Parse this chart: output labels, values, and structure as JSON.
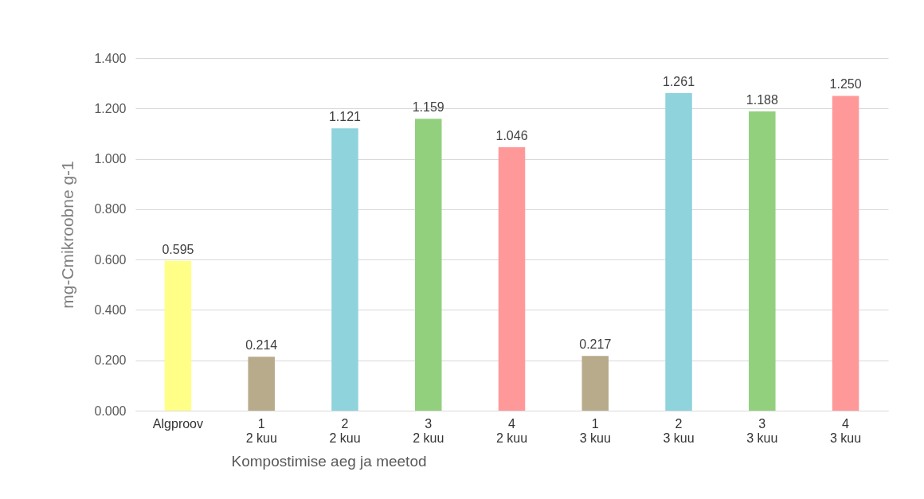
{
  "chart_data": {
    "type": "bar",
    "xlabel": "Kompostimise aeg ja meetod",
    "ylabel": "mg-Cmikroobne g-1",
    "categories": [
      "Algproov",
      "1\n2 kuu",
      "2\n2 kuu",
      "3\n2 kuu",
      "4\n2 kuu",
      "1\n3 kuu",
      "2\n3 kuu",
      "3\n3 kuu",
      "4\n3 kuu"
    ],
    "values": [
      0.595,
      0.214,
      1.121,
      1.159,
      1.046,
      0.217,
      1.261,
      1.188,
      1.25
    ],
    "value_labels": [
      "0.595",
      "0.214",
      "1.121",
      "1.159",
      "1.046",
      "0.217",
      "1.261",
      "1.188",
      "1.250"
    ],
    "colors": [
      "#ffff88",
      "#b8ab8b",
      "#8fd3dc",
      "#92d07e",
      "#ff9999",
      "#b8ab8b",
      "#8fd3dc",
      "#92d07e",
      "#ff9999"
    ],
    "ylim": [
      0,
      1.4
    ],
    "yticks": [
      {
        "value": 0,
        "label": "0.000"
      },
      {
        "value": 0.2,
        "label": "0.200"
      },
      {
        "value": 0.4,
        "label": "0.400"
      },
      {
        "value": 0.6,
        "label": "0.600"
      },
      {
        "value": 0.8,
        "label": "0.800"
      },
      {
        "value": 1.0,
        "label": "1.000"
      },
      {
        "value": 1.2,
        "label": "1.200"
      },
      {
        "value": 1.4,
        "label": "1.400"
      }
    ],
    "grid": "y"
  }
}
